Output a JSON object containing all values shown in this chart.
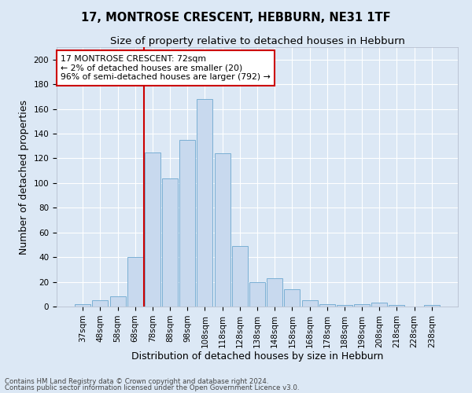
{
  "title1": "17, MONTROSE CRESCENT, HEBBURN, NE31 1TF",
  "title2": "Size of property relative to detached houses in Hebburn",
  "xlabel": "Distribution of detached houses by size in Hebburn",
  "ylabel": "Number of detached properties",
  "categories": [
    "37sqm",
    "48sqm",
    "58sqm",
    "68sqm",
    "78sqm",
    "88sqm",
    "98sqm",
    "108sqm",
    "118sqm",
    "128sqm",
    "138sqm",
    "148sqm",
    "158sqm",
    "168sqm",
    "178sqm",
    "188sqm",
    "198sqm",
    "208sqm",
    "218sqm",
    "228sqm",
    "238sqm"
  ],
  "values": [
    2,
    5,
    8,
    40,
    125,
    104,
    135,
    168,
    124,
    49,
    20,
    23,
    14,
    5,
    2,
    1,
    2,
    3,
    1,
    0,
    1
  ],
  "bar_color": "#c8d9ee",
  "bar_edge_color": "#7aafd4",
  "vline_color": "#cc0000",
  "annotation_text": "17 MONTROSE CRESCENT: 72sqm\n← 2% of detached houses are smaller (20)\n96% of semi-detached houses are larger (792) →",
  "annotation_box_color": "#ffffff",
  "annotation_box_edge": "#cc0000",
  "footnote1": "Contains HM Land Registry data © Crown copyright and database right 2024.",
  "footnote2": "Contains public sector information licensed under the Open Government Licence v3.0.",
  "ylim": [
    0,
    210
  ],
  "yticks": [
    0,
    20,
    40,
    60,
    80,
    100,
    120,
    140,
    160,
    180,
    200
  ],
  "background_color": "#dce8f5",
  "plot_bg_color": "#dce8f5",
  "grid_color": "#ffffff",
  "title1_fontsize": 10.5,
  "title2_fontsize": 9.5,
  "tick_fontsize": 7.5,
  "label_fontsize": 9
}
